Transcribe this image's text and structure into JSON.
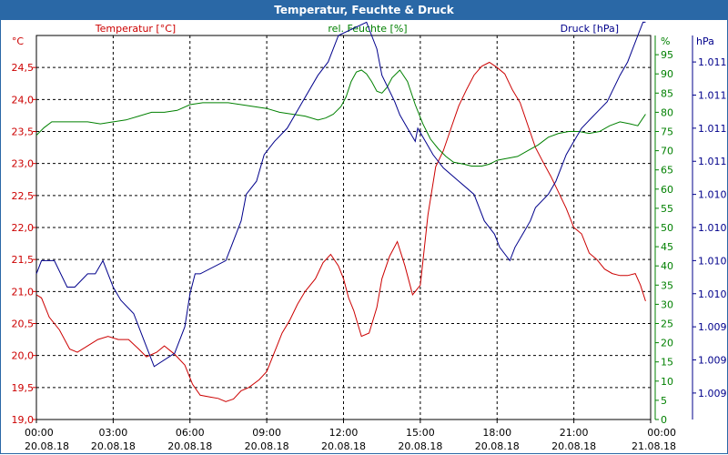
{
  "window": {
    "title": "Temperatur, Feuchte & Druck"
  },
  "colors": {
    "temperature": "#cc0000",
    "humidity": "#008000",
    "pressure": "#00008b",
    "grid": "#000000",
    "title_bar": "#2a68a6"
  },
  "chart_data": {
    "type": "line",
    "title": "Temperatur, Feuchte & Druck",
    "legend": {
      "temperature": "Temperatur [°C]",
      "humidity": "rel. Feuchte [%]",
      "pressure": "Druck [hPa]"
    },
    "x_axis": {
      "unit": "hours since 20.08.18 00:00",
      "range": [
        0,
        24
      ],
      "ticks": [
        {
          "time": "00:00",
          "date": "20.08.18",
          "hour": 0
        },
        {
          "time": "03:00",
          "date": "20.08.18",
          "hour": 3
        },
        {
          "time": "06:00",
          "date": "20.08.18",
          "hour": 6
        },
        {
          "time": "09:00",
          "date": "20.08.18",
          "hour": 9
        },
        {
          "time": "12:00",
          "date": "20.08.18",
          "hour": 12
        },
        {
          "time": "15:00",
          "date": "20.08.18",
          "hour": 15
        },
        {
          "time": "18:00",
          "date": "20.08.18",
          "hour": 18
        },
        {
          "time": "21:00",
          "date": "20.08.18",
          "hour": 21
        },
        {
          "time": "00:00",
          "date": "21.08.18",
          "hour": 24
        }
      ]
    },
    "y_left": {
      "unit_label": "°C",
      "range": [
        19.0,
        25.0
      ],
      "ticks": [
        {
          "label": "19,0",
          "value": 19.0
        },
        {
          "label": "19,5",
          "value": 19.5
        },
        {
          "label": "20,0",
          "value": 20.0
        },
        {
          "label": "20,5",
          "value": 20.5
        },
        {
          "label": "21,0",
          "value": 21.0
        },
        {
          "label": "21,5",
          "value": 21.5
        },
        {
          "label": "22,0",
          "value": 22.0
        },
        {
          "label": "22,5",
          "value": 22.5
        },
        {
          "label": "23,0",
          "value": 23.0
        },
        {
          "label": "23,5",
          "value": 23.5
        },
        {
          "label": "24,0",
          "value": 24.0
        },
        {
          "label": "24,5",
          "value": 24.5
        }
      ]
    },
    "y_humidity": {
      "unit_label": "%",
      "range": [
        0,
        100
      ],
      "ticks": [
        {
          "label": "0",
          "value": 0
        },
        {
          "label": "5",
          "value": 5
        },
        {
          "label": "10",
          "value": 10
        },
        {
          "label": "15",
          "value": 15
        },
        {
          "label": "20",
          "value": 20
        },
        {
          "label": "25",
          "value": 25
        },
        {
          "label": "30",
          "value": 30
        },
        {
          "label": "35",
          "value": 35
        },
        {
          "label": "40",
          "value": 40
        },
        {
          "label": "45",
          "value": 45
        },
        {
          "label": "50",
          "value": 50
        },
        {
          "label": "55",
          "value": 55
        },
        {
          "label": "60",
          "value": 60
        },
        {
          "label": "65",
          "value": 65
        },
        {
          "label": "70",
          "value": 70
        },
        {
          "label": "75",
          "value": 75
        },
        {
          "label": "80",
          "value": 80
        },
        {
          "label": "85",
          "value": 85
        },
        {
          "label": "90",
          "value": 90
        },
        {
          "label": "95",
          "value": 95
        }
      ]
    },
    "y_pressure": {
      "unit_label": "hPa",
      "range": [
        1008.8,
        1011.7
      ],
      "ticks": [
        {
          "label": "1.009",
          "value": 1009.0
        },
        {
          "label": "1.009",
          "value": 1009.25
        },
        {
          "label": "1.009",
          "value": 1009.5
        },
        {
          "label": "1.010",
          "value": 1009.75
        },
        {
          "label": "1.010",
          "value": 1010.0
        },
        {
          "label": "1.010",
          "value": 1010.25
        },
        {
          "label": "1.010",
          "value": 1010.5
        },
        {
          "label": "1.011",
          "value": 1010.75
        },
        {
          "label": "1.011",
          "value": 1011.0
        },
        {
          "label": "1.011",
          "value": 1011.25
        },
        {
          "label": "1.011",
          "value": 1011.5
        }
      ]
    },
    "series": [
      {
        "name": "Temperatur [°C]",
        "axis": "y_left",
        "color": "#cc0000",
        "x": [
          0,
          0.2,
          0.5,
          0.9,
          1.3,
          1.6,
          2.0,
          2.4,
          2.8,
          3.2,
          3.6,
          4.0,
          4.3,
          4.7,
          5.0,
          5.4,
          5.8,
          6.1,
          6.4,
          6.8,
          7.1,
          7.4,
          7.7,
          8.0,
          8.3,
          8.7,
          9.0,
          9.3,
          9.6,
          9.9,
          10.2,
          10.5,
          10.9,
          11.2,
          11.5,
          11.8,
          12.0,
          12.2,
          12.4,
          12.7,
          13.0,
          13.3,
          13.5,
          13.8,
          14.1,
          14.4,
          14.7,
          15.0,
          15.3,
          15.6,
          15.9,
          16.2,
          16.5,
          16.8,
          17.1,
          17.4,
          17.7,
          18.0,
          18.3,
          18.6,
          18.9,
          19.2,
          19.5,
          19.8,
          20.1,
          20.4,
          20.7,
          21.0,
          21.3,
          21.6,
          21.9,
          22.2,
          22.5,
          22.8,
          23.1,
          23.4,
          23.6,
          23.8
        ],
        "values": [
          20.95,
          20.9,
          20.6,
          20.4,
          20.1,
          20.05,
          20.15,
          20.25,
          20.3,
          20.25,
          20.25,
          20.1,
          19.98,
          20.05,
          20.15,
          20.02,
          19.85,
          19.55,
          19.38,
          19.35,
          19.33,
          19.28,
          19.32,
          19.45,
          19.5,
          19.62,
          19.75,
          20.05,
          20.35,
          20.55,
          20.8,
          21.0,
          21.2,
          21.45,
          21.58,
          21.4,
          21.2,
          20.9,
          20.7,
          20.3,
          20.35,
          20.75,
          21.2,
          21.55,
          21.78,
          21.4,
          20.95,
          21.1,
          22.2,
          22.95,
          23.2,
          23.55,
          23.9,
          24.15,
          24.38,
          24.52,
          24.58,
          24.5,
          24.4,
          24.15,
          23.95,
          23.6,
          23.25,
          23.02,
          22.8,
          22.55,
          22.3,
          22.0,
          21.9,
          21.6,
          21.5,
          21.35,
          21.28,
          21.25,
          21.25,
          21.28,
          21.1,
          20.85
        ]
      },
      {
        "name": "rel. Feuchte [%]",
        "axis": "y_humidity",
        "color": "#008000",
        "x": [
          0,
          0.3,
          0.6,
          1.0,
          1.5,
          2.0,
          2.5,
          3.0,
          3.5,
          4.0,
          4.5,
          5.0,
          5.5,
          6.0,
          6.5,
          7.0,
          7.5,
          8.0,
          8.5,
          9.0,
          9.5,
          10.0,
          10.5,
          11.0,
          11.3,
          11.6,
          11.9,
          12.1,
          12.3,
          12.5,
          12.7,
          12.9,
          13.1,
          13.3,
          13.5,
          13.7,
          13.9,
          14.2,
          14.5,
          14.8,
          15.1,
          15.4,
          15.7,
          16.0,
          16.3,
          16.7,
          17.0,
          17.4,
          17.7,
          18.0,
          18.4,
          18.8,
          19.2,
          19.6,
          20.0,
          20.4,
          20.8,
          21.2,
          21.6,
          22.0,
          22.4,
          22.8,
          23.2,
          23.5,
          23.8
        ],
        "values": [
          74,
          76,
          77.5,
          77.5,
          77.5,
          77.5,
          77,
          77.5,
          78,
          79,
          80,
          80,
          80.5,
          82,
          82.5,
          82.5,
          82.5,
          82,
          81.5,
          81,
          80,
          79.5,
          79,
          78,
          78.5,
          79.5,
          81.5,
          84,
          88,
          90.5,
          91,
          90,
          88,
          85.5,
          85,
          86.5,
          89,
          91,
          88,
          82,
          77,
          73,
          70.5,
          68.5,
          67,
          66.5,
          66,
          66,
          66.5,
          67.5,
          68,
          68.5,
          70,
          71.5,
          73.5,
          74.5,
          75,
          75,
          74.5,
          75,
          76.5,
          77.5,
          77,
          76.5,
          79.5
        ]
      },
      {
        "name": "Druck [hPa]",
        "axis": "y_pressure",
        "color": "#00008b",
        "x": [
          0,
          0.2,
          0.7,
          1.2,
          1.5,
          2.0,
          2.3,
          2.6,
          2.8,
          3.0,
          3.3,
          3.8,
          4.2,
          4.6,
          5.4,
          5.8,
          6.0,
          6.2,
          6.4,
          7.4,
          7.6,
          8.0,
          8.2,
          8.6,
          8.9,
          9.3,
          9.8,
          10.1,
          10.4,
          11.0,
          11.4,
          11.8,
          12.9,
          13.1,
          13.3,
          13.5,
          14.0,
          14.2,
          14.5,
          14.8,
          14.9,
          15.2,
          15.5,
          15.9,
          16.5,
          17.1,
          17.5,
          17.9,
          18.1,
          18.5,
          18.7,
          19.0,
          19.3,
          19.5,
          20.0,
          20.3,
          20.7,
          21.0,
          21.3,
          21.8,
          22.3,
          22.8,
          23.1,
          23.3,
          23.5,
          23.7,
          23.8
        ],
        "values": [
          1009.9,
          1010.0,
          1010.0,
          1009.8,
          1009.8,
          1009.9,
          1009.9,
          1010.0,
          1009.9,
          1009.8,
          1009.7,
          1009.6,
          1009.4,
          1009.2,
          1009.3,
          1009.5,
          1009.75,
          1009.9,
          1009.9,
          1010.0,
          1010.1,
          1010.3,
          1010.5,
          1010.6,
          1010.8,
          1010.9,
          1011.0,
          1011.1,
          1011.2,
          1011.4,
          1011.5,
          1011.7,
          1011.8,
          1011.7,
          1011.6,
          1011.4,
          1011.2,
          1011.1,
          1011.0,
          1010.9,
          1011.0,
          1010.9,
          1010.8,
          1010.7,
          1010.6,
          1010.5,
          1010.3,
          1010.2,
          1010.1,
          1010.0,
          1010.1,
          1010.2,
          1010.3,
          1010.4,
          1010.5,
          1010.6,
          1010.8,
          1010.9,
          1011.0,
          1011.1,
          1011.2,
          1011.4,
          1011.5,
          1011.6,
          1011.7,
          1011.8,
          1011.8
        ]
      }
    ]
  }
}
